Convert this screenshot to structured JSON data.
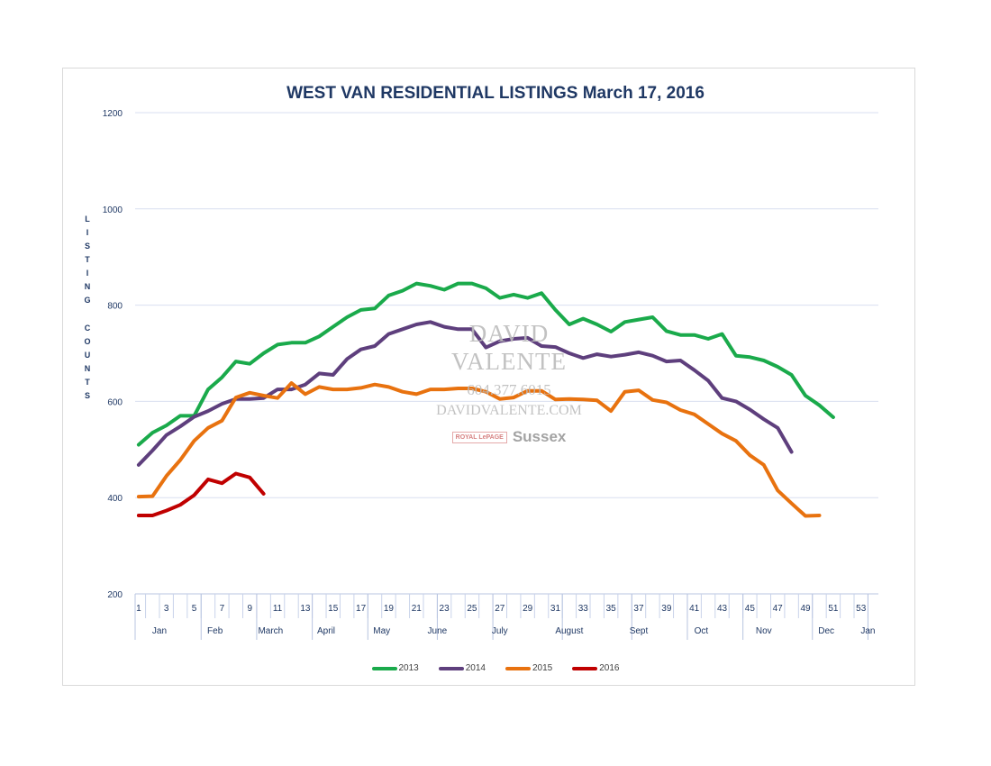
{
  "chart_data": {
    "type": "line",
    "title": "WEST VAN RESIDENTIAL LISTINGS March 17, 2016",
    "ylabel": "LISTING COUNTS",
    "ylim": [
      200,
      1200
    ],
    "yticks": [
      200,
      400,
      600,
      800,
      1000,
      1200
    ],
    "xlim": [
      1,
      54
    ],
    "xticks": [
      "1",
      "3",
      "5",
      "7",
      "9",
      "11",
      "13",
      "15",
      "17",
      "19",
      "21",
      "23",
      "25",
      "27",
      "29",
      "31",
      "33",
      "35",
      "37",
      "39",
      "41",
      "43",
      "45",
      "47",
      "49",
      "51",
      "53"
    ],
    "months": [
      {
        "label": "Jan",
        "center": 2.5
      },
      {
        "label": "Feb",
        "center": 6.5
      },
      {
        "label": "March",
        "center": 10.5
      },
      {
        "label": "April",
        "center": 14.5
      },
      {
        "label": "May",
        "center": 18.5
      },
      {
        "label": "June",
        "center": 22.5
      },
      {
        "label": "July",
        "center": 27
      },
      {
        "label": "August",
        "center": 32
      },
      {
        "label": "Sept",
        "center": 37
      },
      {
        "label": "Oct",
        "center": 41.5
      },
      {
        "label": "Nov",
        "center": 46
      },
      {
        "label": "Dec",
        "center": 50.5
      },
      {
        "label": "Jan",
        "center": 53.5
      }
    ],
    "month_dividers": [
      5,
      9,
      13,
      17,
      22,
      26,
      31,
      36,
      40,
      44,
      49,
      53
    ],
    "grid": true,
    "legend_position": "bottom",
    "series": [
      {
        "name": "2013",
        "color": "#1aaa4b",
        "x": [
          1,
          2,
          3,
          4,
          5,
          6,
          7,
          8,
          9,
          10,
          11,
          12,
          13,
          14,
          15,
          16,
          17,
          18,
          19,
          20,
          21,
          22,
          23,
          24,
          25,
          26,
          27,
          28,
          29,
          30,
          31,
          32,
          33,
          34,
          35,
          36,
          37,
          38,
          39,
          40,
          41,
          42,
          43,
          44,
          45,
          46,
          47,
          48,
          49,
          50,
          51
        ],
        "y": [
          510,
          535,
          550,
          570,
          570,
          625,
          650,
          683,
          678,
          700,
          718,
          722,
          722,
          735,
          755,
          775,
          790,
          793,
          820,
          830,
          845,
          840,
          832,
          845,
          845,
          835,
          815,
          822,
          815,
          825,
          790,
          760,
          772,
          760,
          745,
          765,
          770,
          775,
          746,
          738,
          738,
          730,
          740,
          695,
          692,
          685,
          672,
          655,
          612,
          592,
          567
        ]
      },
      {
        "name": "2014",
        "color": "#5e3f7d",
        "x": [
          1,
          2,
          3,
          4,
          5,
          6,
          7,
          8,
          9,
          10,
          11,
          12,
          13,
          14,
          15,
          16,
          17,
          18,
          19,
          20,
          21,
          22,
          23,
          24,
          25,
          26,
          27,
          28,
          29,
          30,
          31,
          32,
          33,
          34,
          35,
          36,
          37,
          38,
          39,
          40,
          41,
          42,
          43,
          44,
          45,
          46,
          47,
          48
        ],
        "y": [
          468,
          498,
          530,
          548,
          568,
          580,
          595,
          605,
          605,
          607,
          625,
          625,
          635,
          658,
          655,
          688,
          708,
          715,
          740,
          750,
          760,
          765,
          755,
          750,
          750,
          712,
          725,
          730,
          732,
          715,
          713,
          700,
          690,
          698,
          693,
          697,
          702,
          695,
          683,
          685,
          665,
          643,
          607,
          600,
          583,
          563,
          545,
          495
        ]
      },
      {
        "name": "2015",
        "color": "#e8720f",
        "x": [
          1,
          2,
          3,
          4,
          5,
          6,
          7,
          8,
          9,
          10,
          11,
          12,
          13,
          14,
          15,
          16,
          17,
          18,
          19,
          20,
          21,
          22,
          23,
          24,
          25,
          26,
          27,
          28,
          29,
          30,
          31,
          32,
          33,
          34,
          35,
          36,
          37,
          38,
          39,
          40,
          41,
          42,
          43,
          44,
          45,
          46,
          47,
          48,
          49,
          50,
          51
        ],
        "y": [
          402,
          403,
          445,
          478,
          518,
          545,
          560,
          608,
          618,
          612,
          607,
          638,
          615,
          630,
          625,
          625,
          628,
          635,
          630,
          620,
          615,
          625,
          625,
          627,
          627,
          620,
          605,
          608,
          622,
          622,
          604,
          605,
          604,
          602,
          580,
          620,
          623,
          603,
          598,
          582,
          573,
          553,
          533,
          518,
          488,
          468,
          415,
          388,
          362,
          363,
          null
        ]
      },
      {
        "name": "2016",
        "color": "#c00000",
        "x": [
          1,
          2,
          3,
          4,
          5,
          6,
          7,
          8,
          9,
          10
        ],
        "y": [
          363,
          363,
          373,
          385,
          405,
          438,
          430,
          450,
          442,
          408
        ]
      }
    ],
    "watermark": {
      "name": "DAVID VALENTE",
      "phone": "604.377.6015",
      "site": "DAVIDVALENTE.COM",
      "brand": "ROYAL LePAGE",
      "brand_office": "Sussex"
    }
  }
}
